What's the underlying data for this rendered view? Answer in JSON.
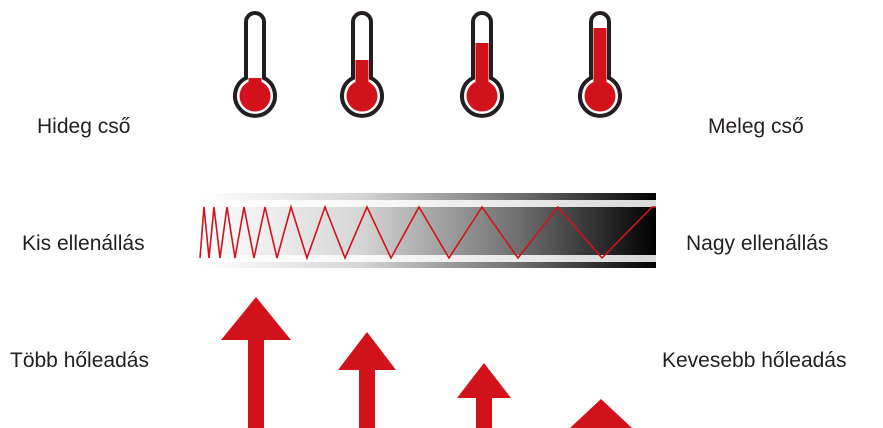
{
  "labels": {
    "cold_pipe": "Hideg cső",
    "warm_pipe": "Meleg cső",
    "low_resistance": "Kis ellenállás",
    "high_resistance": "Nagy ellenállás",
    "more_heat": "Több hőleadás",
    "less_heat": "Kevesebb hőleadás"
  },
  "thermometers": {
    "count": 4,
    "fill_levels": [
      0.18,
      0.38,
      0.58,
      0.85
    ],
    "fill_color": "#d2121b",
    "outline_color": "#231f20"
  },
  "resistor": {
    "gradient_start": "#ffffff",
    "gradient_end": "#000000",
    "coil_color": "#d2121b",
    "coil_trend": "dense-to-sparse"
  },
  "arrows": {
    "count": 4,
    "relative_heights": [
      1.0,
      0.78,
      0.55,
      0.25
    ],
    "color": "#d2121b"
  },
  "colors": {
    "accent": "#d2121b",
    "text": "#231f20"
  }
}
